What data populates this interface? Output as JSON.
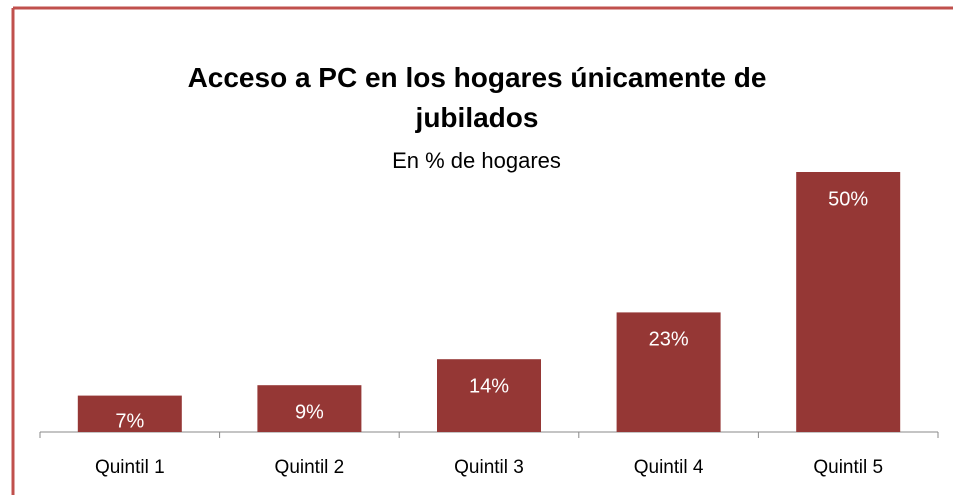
{
  "chart_data": {
    "type": "bar",
    "title": "Acceso a PC en los hogares únicamente de jubilados",
    "subtitle": "En % de hogares",
    "categories": [
      "Quintil 1",
      "Quintil 2",
      "Quintil 3",
      "Quintil 4",
      "Quintil 5"
    ],
    "values": [
      7,
      9,
      14,
      23,
      50
    ],
    "value_labels": [
      "7%",
      "9%",
      "14%",
      "23%",
      "50%"
    ],
    "color": "#953735"
  }
}
